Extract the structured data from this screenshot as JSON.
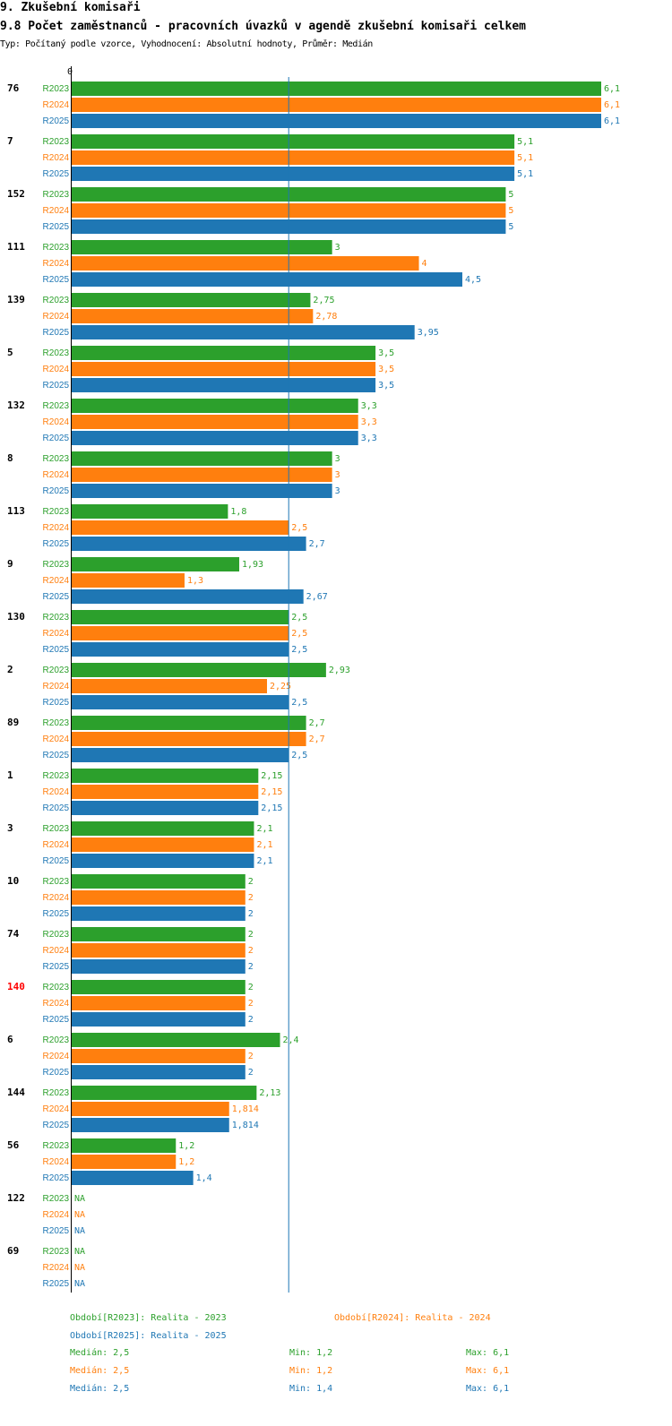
{
  "header": {
    "section_title": "9. Zkušební komisaři",
    "chart_title": "9.8 Počet zaměstnanců - pracovních úvazků v agendě zkušební komisaři celkem",
    "subtitle": "Typ: Počítaný podle vzorce, Vyhodnocení: Absolutní hodnoty, Průměr: Medián"
  },
  "colors": {
    "R2023": "#2ca02c",
    "R2024": "#ff7f0e",
    "R2025": "#1f77b4",
    "highlight": "#ff0000",
    "median_line": "#1f77b4"
  },
  "chart_data": {
    "type": "bar",
    "orientation": "horizontal",
    "title": "9.8 Počet zaměstnanců - pracovních úvazků v agendě zkušební komisaři celkem",
    "axis_zero_label": "0",
    "xlim": [
      0,
      6.1
    ],
    "median_line_value": 2.5,
    "series_names": [
      "R2023",
      "R2024",
      "R2025"
    ],
    "highlighted_category": "140",
    "groups": [
      {
        "category": "76",
        "values": [
          6.1,
          6.1,
          6.1
        ],
        "labels": [
          "6,1",
          "6,1",
          "6,1"
        ]
      },
      {
        "category": "7",
        "values": [
          5.1,
          5.1,
          5.1
        ],
        "labels": [
          "5,1",
          "5,1",
          "5,1"
        ]
      },
      {
        "category": "152",
        "values": [
          5,
          5,
          5
        ],
        "labels": [
          "5",
          "5",
          "5"
        ]
      },
      {
        "category": "111",
        "values": [
          3,
          4,
          4.5
        ],
        "labels": [
          "3",
          "4",
          "4,5"
        ]
      },
      {
        "category": "139",
        "values": [
          2.75,
          2.78,
          3.95
        ],
        "labels": [
          "2,75",
          "2,78",
          "3,95"
        ]
      },
      {
        "category": "5",
        "values": [
          3.5,
          3.5,
          3.5
        ],
        "labels": [
          "3,5",
          "3,5",
          "3,5"
        ]
      },
      {
        "category": "132",
        "values": [
          3.3,
          3.3,
          3.3
        ],
        "labels": [
          "3,3",
          "3,3",
          "3,3"
        ]
      },
      {
        "category": "8",
        "values": [
          3,
          3,
          3
        ],
        "labels": [
          "3",
          "3",
          "3"
        ]
      },
      {
        "category": "113",
        "values": [
          1.8,
          2.5,
          2.7
        ],
        "labels": [
          "1,8",
          "2,5",
          "2,7"
        ]
      },
      {
        "category": "9",
        "values": [
          1.93,
          1.3,
          2.67
        ],
        "labels": [
          "1,93",
          "1,3",
          "2,67"
        ]
      },
      {
        "category": "130",
        "values": [
          2.5,
          2.5,
          2.5
        ],
        "labels": [
          "2,5",
          "2,5",
          "2,5"
        ]
      },
      {
        "category": "2",
        "values": [
          2.93,
          2.25,
          2.5
        ],
        "labels": [
          "2,93",
          "2,25",
          "2,5"
        ]
      },
      {
        "category": "89",
        "values": [
          2.7,
          2.7,
          2.5
        ],
        "labels": [
          "2,7",
          "2,7",
          "2,5"
        ]
      },
      {
        "category": "1",
        "values": [
          2.15,
          2.15,
          2.15
        ],
        "labels": [
          "2,15",
          "2,15",
          "2,15"
        ]
      },
      {
        "category": "3",
        "values": [
          2.1,
          2.1,
          2.1
        ],
        "labels": [
          "2,1",
          "2,1",
          "2,1"
        ]
      },
      {
        "category": "10",
        "values": [
          2,
          2,
          2
        ],
        "labels": [
          "2",
          "2",
          "2"
        ]
      },
      {
        "category": "74",
        "values": [
          2,
          2,
          2
        ],
        "labels": [
          "2",
          "2",
          "2"
        ]
      },
      {
        "category": "140",
        "values": [
          2,
          2,
          2
        ],
        "labels": [
          "2",
          "2",
          "2"
        ]
      },
      {
        "category": "6",
        "values": [
          2.4,
          2,
          2
        ],
        "labels": [
          "2,4",
          "2",
          "2"
        ]
      },
      {
        "category": "144",
        "values": [
          2.13,
          1.814,
          1.814
        ],
        "labels": [
          "2,13",
          "1,814",
          "1,814"
        ]
      },
      {
        "category": "56",
        "values": [
          1.2,
          1.2,
          1.4
        ],
        "labels": [
          "1,2",
          "1,2",
          "1,4"
        ]
      },
      {
        "category": "122",
        "values": [
          null,
          null,
          null
        ],
        "labels": [
          "NA",
          "NA",
          "NA"
        ]
      },
      {
        "category": "69",
        "values": [
          null,
          null,
          null
        ],
        "labels": [
          "NA",
          "NA",
          "NA"
        ]
      }
    ]
  },
  "legend": {
    "period_2023": "Období[R2023]: Realita - 2023",
    "period_2024": "Období[R2024]: Realita - 2024",
    "period_2025": "Období[R2025]: Realita - 2025",
    "stats": [
      {
        "median": "Medián: 2,5",
        "min": "Min: 1,2",
        "max": "Max: 6,1"
      },
      {
        "median": "Medián: 2,5",
        "min": "Min: 1,2",
        "max": "Max: 6,1"
      },
      {
        "median": "Medián: 2,5",
        "min": "Min: 1,4",
        "max": "Max: 6,1"
      }
    ]
  }
}
